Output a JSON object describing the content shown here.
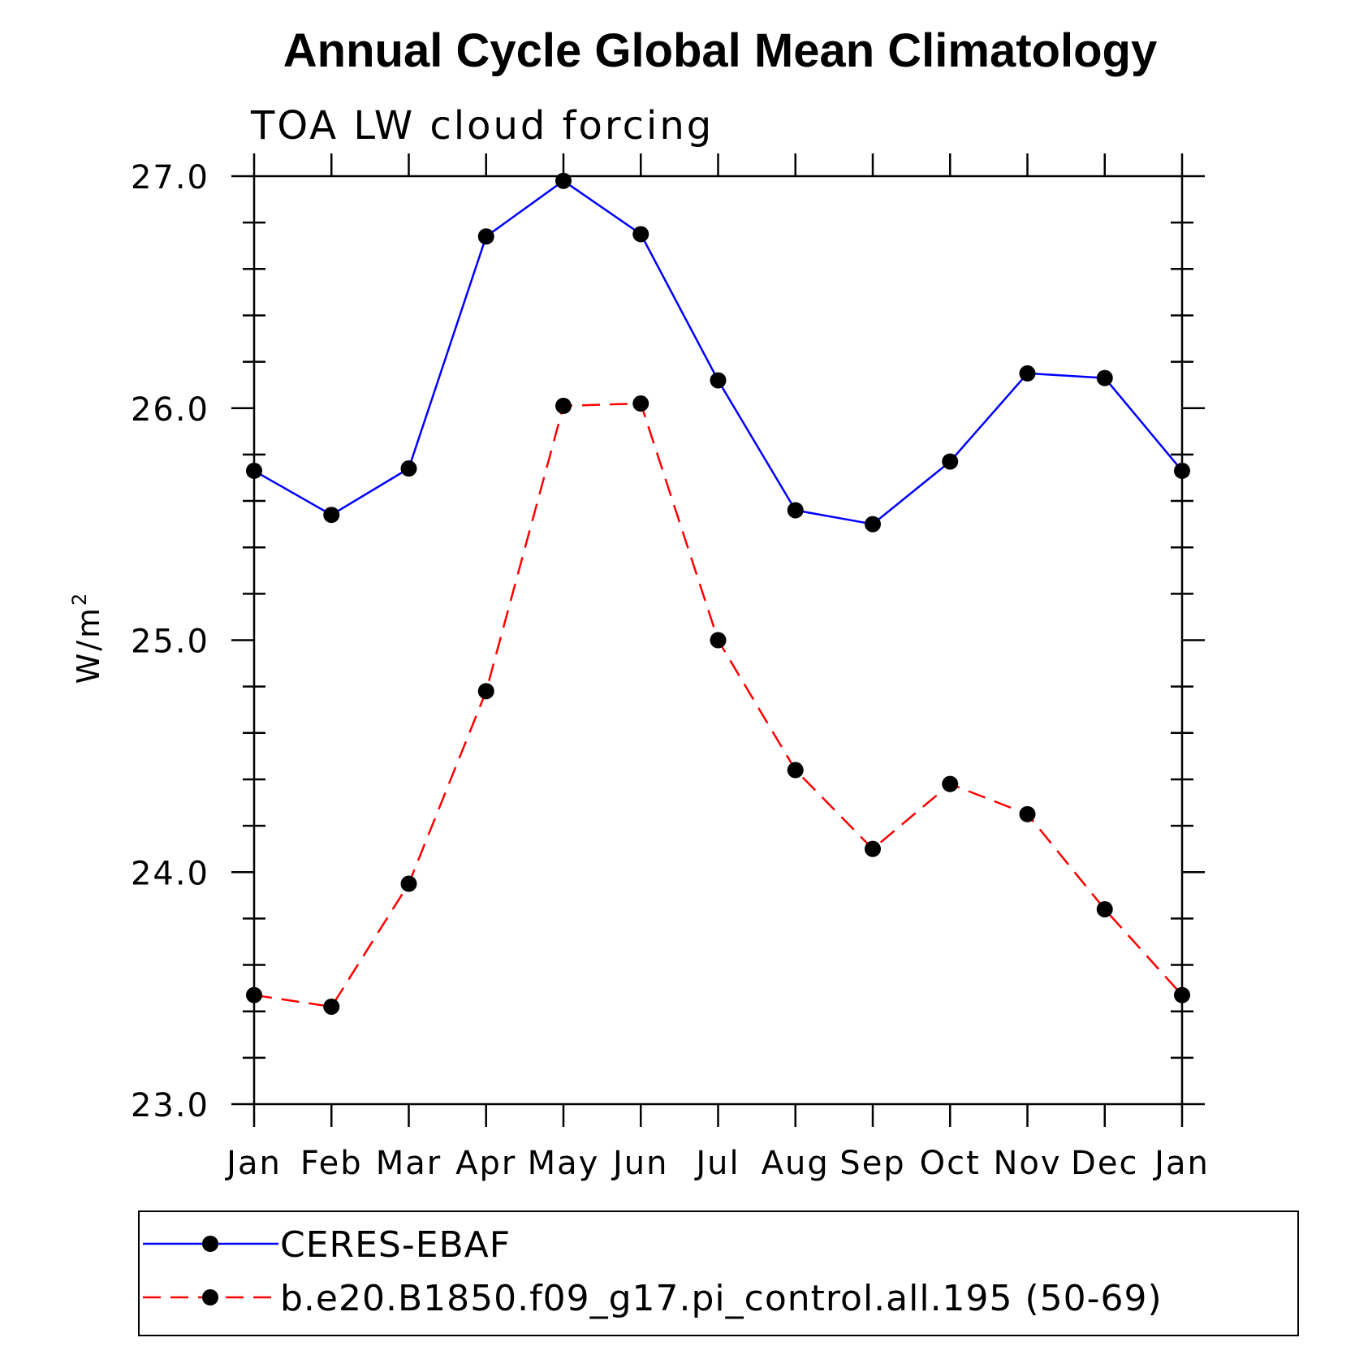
{
  "chart_data": {
    "type": "line",
    "title": "Annual Cycle Global Mean Climatology",
    "subtitle": "TOA LW cloud forcing",
    "ylabel": "W/m",
    "ylabel_superscript": "2",
    "ylim": [
      23.0,
      27.0
    ],
    "yticks": [
      "23.0",
      "24.0",
      "25.0",
      "26.0",
      "27.0"
    ],
    "categories": [
      "Jan",
      "Feb",
      "Mar",
      "Apr",
      "May",
      "Jun",
      "Jul",
      "Aug",
      "Sep",
      "Oct",
      "Nov",
      "Dec",
      "Jan"
    ],
    "grid": false,
    "legend_position": "bottom",
    "series": [
      {
        "name": "CERES-EBAF",
        "color": "#0000ff",
        "line_style": "solid",
        "marker": "filled-circle",
        "values": [
          25.73,
          25.54,
          25.74,
          26.74,
          26.98,
          26.75,
          26.12,
          25.56,
          25.5,
          25.77,
          26.15,
          26.13,
          25.73
        ]
      },
      {
        "name": "b.e20.B1850.f09_g17.pi_control.all.195 (50-69)",
        "color": "#ff0000",
        "line_style": "dashed",
        "marker": "filled-circle",
        "values": [
          23.47,
          23.42,
          23.95,
          24.78,
          26.01,
          26.02,
          25.0,
          24.44,
          24.1,
          24.38,
          24.25,
          23.84,
          23.47
        ]
      }
    ]
  }
}
